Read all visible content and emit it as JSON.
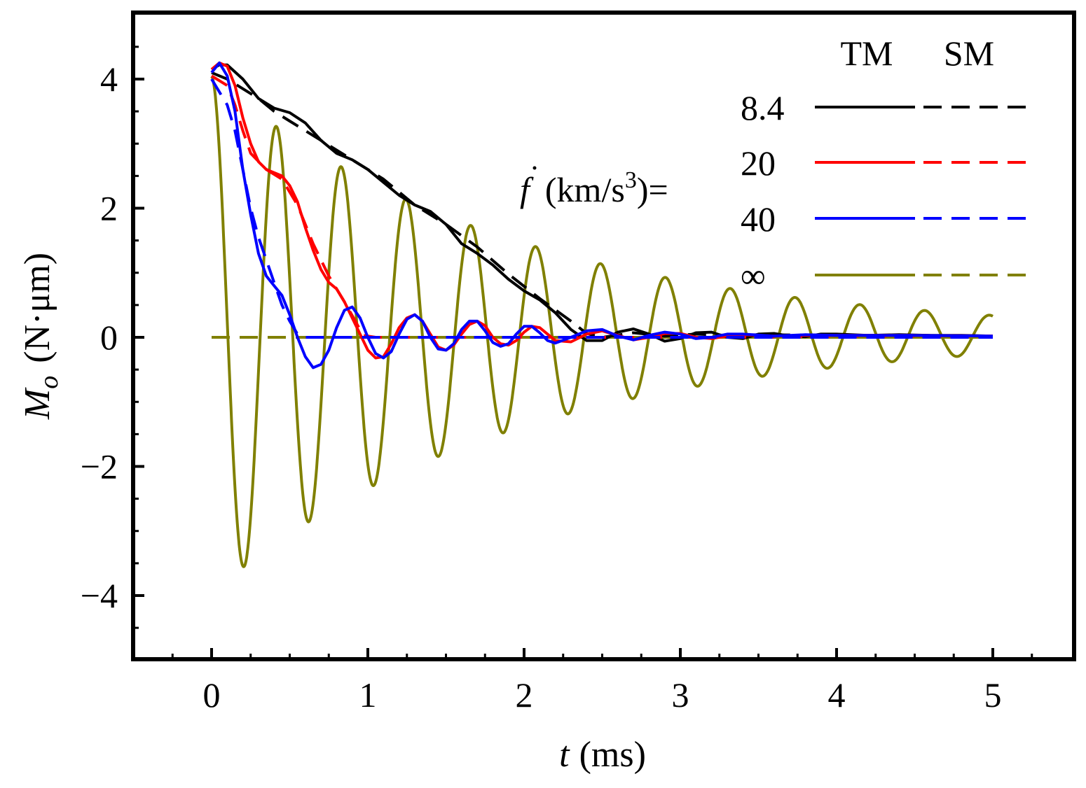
{
  "chart_data": {
    "type": "line",
    "title": "",
    "xlabel": {
      "symbol": "t",
      "unit": "(ms)"
    },
    "ylabel": {
      "symbol": "M",
      "subscript": "o",
      "unit": "(N·μm)"
    },
    "xlim": [
      -0.5,
      5.5
    ],
    "ylim": [
      -5,
      5
    ],
    "grid": false,
    "xticks": [
      0,
      1,
      2,
      3,
      4,
      5
    ],
    "xtick_labels": [
      "0",
      "1",
      "2",
      "3",
      "4",
      "5"
    ],
    "yticks": [
      -4,
      -2,
      0,
      2,
      4
    ],
    "ytick_labels": [
      "−4",
      "−2",
      "0",
      "2",
      "4"
    ],
    "legend": {
      "placement": "top-right",
      "header_tm": "TM",
      "header_sm": "SM",
      "parameter_prefix": "(km/s",
      "parameter_exponent": "3",
      "parameter_suffix": ")=",
      "parameter_symbol": "f"
    },
    "series": [
      {
        "name": "8.4",
        "model": "TM",
        "style": "solid",
        "color": "#000000",
        "points": [
          [
            0,
            4.15
          ],
          [
            0.05,
            4.22
          ],
          [
            0.1,
            4.22
          ],
          [
            0.2,
            4.0
          ],
          [
            0.3,
            3.7
          ],
          [
            0.4,
            3.55
          ],
          [
            0.5,
            3.48
          ],
          [
            0.6,
            3.32
          ],
          [
            0.7,
            3.05
          ],
          [
            0.8,
            2.85
          ],
          [
            0.9,
            2.75
          ],
          [
            1.0,
            2.6
          ],
          [
            1.1,
            2.4
          ],
          [
            1.2,
            2.2
          ],
          [
            1.3,
            2.05
          ],
          [
            1.4,
            1.95
          ],
          [
            1.5,
            1.75
          ],
          [
            1.6,
            1.45
          ],
          [
            1.7,
            1.3
          ],
          [
            1.8,
            1.12
          ],
          [
            1.9,
            0.9
          ],
          [
            2.0,
            0.72
          ],
          [
            2.1,
            0.58
          ],
          [
            2.2,
            0.38
          ],
          [
            2.3,
            0.12
          ],
          [
            2.4,
            -0.05
          ],
          [
            2.5,
            -0.05
          ],
          [
            2.6,
            0.08
          ],
          [
            2.7,
            0.13
          ],
          [
            2.8,
            0.05
          ],
          [
            2.9,
            -0.06
          ],
          [
            3.0,
            -0.02
          ],
          [
            3.1,
            0.07
          ],
          [
            3.2,
            0.08
          ],
          [
            3.3,
            0.0
          ],
          [
            3.4,
            -0.02
          ],
          [
            3.5,
            0.05
          ],
          [
            3.6,
            0.06
          ],
          [
            3.7,
            0.02
          ],
          [
            3.8,
            0.01
          ],
          [
            3.9,
            0.05
          ],
          [
            4.0,
            0.05
          ],
          [
            4.2,
            0.03
          ],
          [
            4.4,
            0.04
          ],
          [
            4.6,
            0.03
          ],
          [
            4.8,
            0.03
          ],
          [
            5.0,
            0.02
          ]
        ]
      },
      {
        "name": "8.4",
        "model": "SM",
        "style": "dashed",
        "color": "#000000",
        "points": [
          [
            0,
            4.1
          ],
          [
            0.1,
            4.0
          ],
          [
            0.2,
            3.85
          ],
          [
            0.3,
            3.7
          ],
          [
            0.4,
            3.5
          ],
          [
            0.5,
            3.35
          ],
          [
            0.7,
            3.05
          ],
          [
            0.9,
            2.75
          ],
          [
            1.1,
            2.45
          ],
          [
            1.3,
            2.05
          ],
          [
            1.5,
            1.75
          ],
          [
            1.7,
            1.4
          ],
          [
            1.9,
            0.98
          ],
          [
            2.1,
            0.6
          ],
          [
            2.3,
            0.25
          ],
          [
            2.4,
            0.06
          ],
          [
            2.5,
            0.0
          ],
          [
            2.7,
            0.07
          ],
          [
            2.9,
            0.02
          ],
          [
            3.1,
            0.05
          ],
          [
            3.3,
            0.03
          ],
          [
            3.5,
            0.04
          ],
          [
            4.0,
            0.03
          ],
          [
            4.5,
            0.03
          ],
          [
            5.0,
            0.02
          ]
        ]
      },
      {
        "name": "20",
        "model": "TM",
        "style": "solid",
        "color": "#ff0000",
        "points": [
          [
            0,
            4.15
          ],
          [
            0.05,
            4.25
          ],
          [
            0.1,
            4.2
          ],
          [
            0.15,
            3.9
          ],
          [
            0.2,
            3.4
          ],
          [
            0.25,
            3.0
          ],
          [
            0.3,
            2.72
          ],
          [
            0.35,
            2.6
          ],
          [
            0.45,
            2.5
          ],
          [
            0.5,
            2.35
          ],
          [
            0.55,
            2.1
          ],
          [
            0.6,
            1.7
          ],
          [
            0.65,
            1.35
          ],
          [
            0.7,
            1.05
          ],
          [
            0.75,
            0.85
          ],
          [
            0.8,
            0.75
          ],
          [
            0.85,
            0.55
          ],
          [
            0.9,
            0.3
          ],
          [
            0.95,
            0.05
          ],
          [
            1.0,
            -0.2
          ],
          [
            1.05,
            -0.32
          ],
          [
            1.1,
            -0.3
          ],
          [
            1.15,
            -0.1
          ],
          [
            1.2,
            0.15
          ],
          [
            1.25,
            0.3
          ],
          [
            1.3,
            0.35
          ],
          [
            1.35,
            0.25
          ],
          [
            1.4,
            0.05
          ],
          [
            1.45,
            -0.15
          ],
          [
            1.5,
            -0.2
          ],
          [
            1.55,
            -0.12
          ],
          [
            1.6,
            0.05
          ],
          [
            1.65,
            0.2
          ],
          [
            1.7,
            0.25
          ],
          [
            1.75,
            0.18
          ],
          [
            1.8,
            0.0
          ],
          [
            1.85,
            -0.1
          ],
          [
            1.9,
            -0.12
          ],
          [
            1.95,
            -0.05
          ],
          [
            2.0,
            0.08
          ],
          [
            2.05,
            0.17
          ],
          [
            2.1,
            0.15
          ],
          [
            2.15,
            0.05
          ],
          [
            2.2,
            -0.05
          ],
          [
            2.3,
            -0.07
          ],
          [
            2.4,
            0.05
          ],
          [
            2.5,
            0.1
          ],
          [
            2.6,
            0.03
          ],
          [
            2.7,
            -0.04
          ],
          [
            2.8,
            0.0
          ],
          [
            2.9,
            0.06
          ],
          [
            3.0,
            0.06
          ],
          [
            3.1,
            0.0
          ],
          [
            3.2,
            -0.02
          ],
          [
            3.3,
            0.02
          ],
          [
            3.4,
            0.04
          ],
          [
            3.6,
            0.02
          ],
          [
            3.8,
            0.03
          ],
          [
            4.0,
            0.03
          ],
          [
            4.5,
            0.03
          ],
          [
            5.0,
            0.02
          ]
        ]
      },
      {
        "name": "20",
        "model": "SM",
        "style": "dashed",
        "color": "#ff0000",
        "points": [
          [
            0,
            4.05
          ],
          [
            0.1,
            3.9
          ],
          [
            0.15,
            3.6
          ],
          [
            0.2,
            3.2
          ],
          [
            0.25,
            2.85
          ],
          [
            0.35,
            2.6
          ],
          [
            0.45,
            2.45
          ],
          [
            0.55,
            2.05
          ],
          [
            0.65,
            1.45
          ],
          [
            0.75,
            0.95
          ],
          [
            0.85,
            0.55
          ],
          [
            0.92,
            0.25
          ],
          [
            0.97,
            0.03
          ],
          [
            1.05,
            0.0
          ],
          [
            1.3,
            0.0
          ],
          [
            1.6,
            0.0
          ],
          [
            2.0,
            0.0
          ],
          [
            2.5,
            0.0
          ],
          [
            3.0,
            0.0
          ],
          [
            3.5,
            0.0
          ],
          [
            4.0,
            0.02
          ],
          [
            4.5,
            0.02
          ],
          [
            5.0,
            0.02
          ]
        ]
      },
      {
        "name": "40",
        "model": "TM",
        "style": "solid",
        "color": "#0000ff",
        "points": [
          [
            0,
            4.1
          ],
          [
            0.05,
            4.25
          ],
          [
            0.1,
            4.05
          ],
          [
            0.15,
            3.5
          ],
          [
            0.2,
            2.6
          ],
          [
            0.25,
            1.9
          ],
          [
            0.3,
            1.3
          ],
          [
            0.35,
            0.95
          ],
          [
            0.4,
            0.8
          ],
          [
            0.45,
            0.65
          ],
          [
            0.5,
            0.35
          ],
          [
            0.55,
            0.0
          ],
          [
            0.6,
            -0.3
          ],
          [
            0.65,
            -0.47
          ],
          [
            0.7,
            -0.42
          ],
          [
            0.75,
            -0.2
          ],
          [
            0.8,
            0.15
          ],
          [
            0.85,
            0.42
          ],
          [
            0.9,
            0.47
          ],
          [
            0.95,
            0.3
          ],
          [
            1.0,
            0.0
          ],
          [
            1.05,
            -0.25
          ],
          [
            1.1,
            -0.32
          ],
          [
            1.15,
            -0.22
          ],
          [
            1.2,
            0.05
          ],
          [
            1.25,
            0.28
          ],
          [
            1.3,
            0.35
          ],
          [
            1.35,
            0.25
          ],
          [
            1.4,
            0.0
          ],
          [
            1.45,
            -0.18
          ],
          [
            1.5,
            -0.2
          ],
          [
            1.55,
            -0.1
          ],
          [
            1.6,
            0.12
          ],
          [
            1.65,
            0.25
          ],
          [
            1.7,
            0.25
          ],
          [
            1.75,
            0.1
          ],
          [
            1.8,
            -0.08
          ],
          [
            1.85,
            -0.14
          ],
          [
            1.9,
            -0.1
          ],
          [
            1.95,
            0.05
          ],
          [
            2.0,
            0.17
          ],
          [
            2.05,
            0.17
          ],
          [
            2.1,
            0.07
          ],
          [
            2.15,
            -0.05
          ],
          [
            2.2,
            -0.09
          ],
          [
            2.3,
            0.0
          ],
          [
            2.4,
            0.1
          ],
          [
            2.5,
            0.12
          ],
          [
            2.6,
            0.02
          ],
          [
            2.7,
            -0.04
          ],
          [
            2.8,
            0.03
          ],
          [
            2.9,
            0.08
          ],
          [
            3.0,
            0.05
          ],
          [
            3.1,
            -0.02
          ],
          [
            3.2,
            0.0
          ],
          [
            3.3,
            0.05
          ],
          [
            3.4,
            0.05
          ],
          [
            3.6,
            0.02
          ],
          [
            3.8,
            0.04
          ],
          [
            4.0,
            0.03
          ],
          [
            4.5,
            0.03
          ],
          [
            5.0,
            0.02
          ]
        ]
      },
      {
        "name": "40",
        "model": "SM",
        "style": "dashed",
        "color": "#0000ff",
        "points": [
          [
            0,
            4.0
          ],
          [
            0.1,
            3.6
          ],
          [
            0.15,
            3.2
          ],
          [
            0.2,
            2.6
          ],
          [
            0.25,
            2.0
          ],
          [
            0.3,
            1.55
          ],
          [
            0.35,
            1.2
          ],
          [
            0.4,
            0.85
          ],
          [
            0.45,
            0.5
          ],
          [
            0.5,
            0.25
          ],
          [
            0.55,
            0.05
          ],
          [
            0.6,
            0.0
          ],
          [
            1.0,
            0.0
          ],
          [
            1.5,
            0.0
          ],
          [
            2.0,
            0.0
          ],
          [
            2.5,
            0.0
          ],
          [
            3.0,
            0.0
          ],
          [
            3.5,
            0.0
          ],
          [
            4.0,
            0.0
          ],
          [
            4.5,
            0.0
          ],
          [
            5.0,
            0.0
          ]
        ]
      },
      {
        "name": "∞",
        "model": "TM",
        "style": "solid",
        "color": "#808000",
        "oscillation": {
          "amplitude": 4.0,
          "period_ms": 0.415,
          "decay_ms": 1.93,
          "start_value": 4.0,
          "first_minimum": -3.7,
          "final_value": 0.15
        }
      },
      {
        "name": "∞",
        "model": "SM",
        "style": "dashed",
        "color": "#808000",
        "points": [
          [
            0,
            0
          ],
          [
            5,
            0
          ]
        ]
      }
    ]
  }
}
